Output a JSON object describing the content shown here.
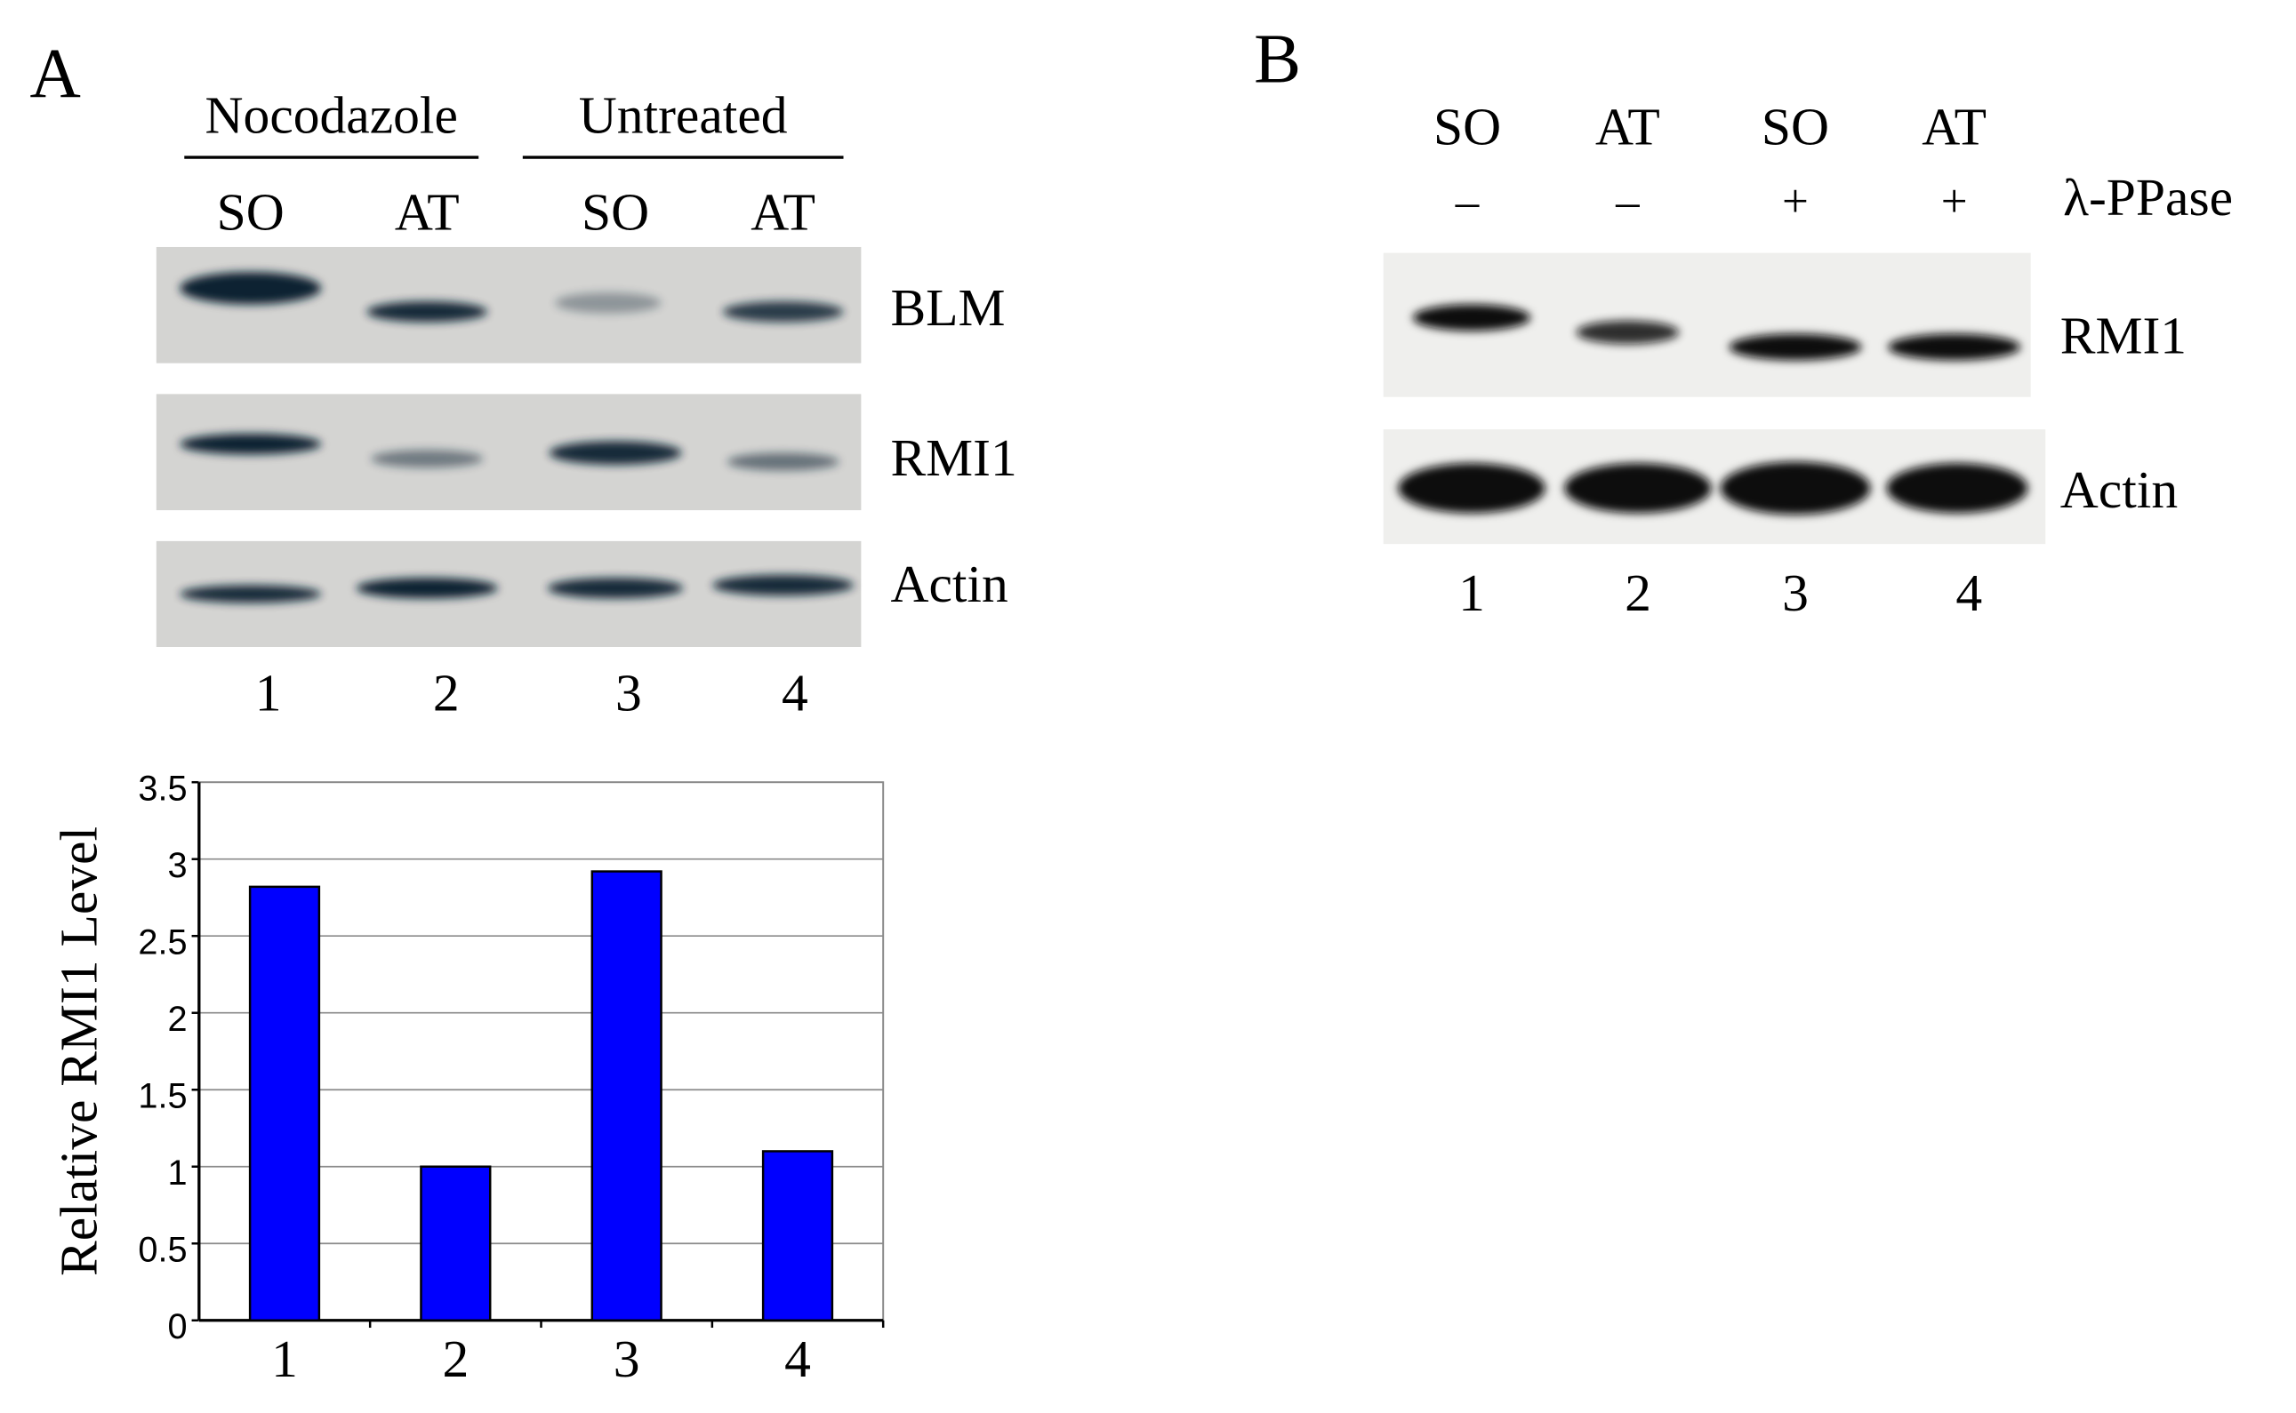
{
  "panel_a": {
    "label": "A",
    "groups": [
      "Nocodazole",
      "Untreated"
    ],
    "lanes": [
      "SO",
      "AT",
      "SO",
      "AT"
    ],
    "blots": [
      "BLM",
      "RMI1",
      "Actin"
    ],
    "lane_numbers": [
      "1",
      "2",
      "3",
      "4"
    ]
  },
  "panel_b": {
    "label": "B",
    "lanes": [
      "SO",
      "AT",
      "SO",
      "AT"
    ],
    "treatment": [
      "–",
      "–",
      "+",
      "+"
    ],
    "treatment_label": "λ-PPase",
    "blots": [
      "RMI1",
      "Actin"
    ],
    "lane_numbers": [
      "1",
      "2",
      "3",
      "4"
    ]
  },
  "chart_data": {
    "type": "bar",
    "y_label": "Relative RMI1 Level",
    "categories": [
      "1",
      "2",
      "3",
      "4"
    ],
    "values": [
      2.82,
      1,
      2.92,
      1.1
    ],
    "color": "#0000ff",
    "ylim": [
      0,
      3.5
    ],
    "yticks": [
      0,
      0.5,
      1,
      1.5,
      2,
      2.5,
      3,
      3.5
    ],
    "grid": true
  }
}
